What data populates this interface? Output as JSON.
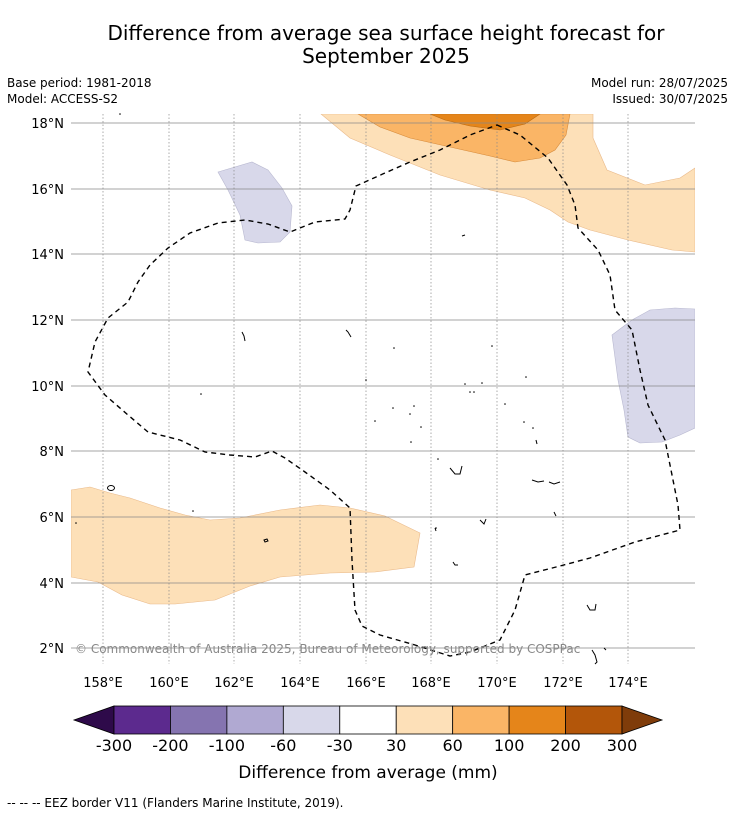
{
  "title_line1": "Difference from average sea surface height forecast for",
  "title_line2": "September 2025",
  "meta_left": [
    "Base period: 1981-2018",
    "Model: ACCESS-S2"
  ],
  "meta_right": [
    "Model run: 28/07/2025",
    "Issued: 30/07/2025"
  ],
  "lon_ticks": [
    "158°E",
    "160°E",
    "162°E",
    "164°E",
    "166°E",
    "168°E",
    "170°E",
    "172°E",
    "174°E"
  ],
  "lat_ticks": [
    "18°N",
    "16°N",
    "14°N",
    "12°N",
    "10°N",
    "8°N",
    "6°N",
    "4°N",
    "2°N"
  ],
  "copyright": "© Commonwealth of Australia 2025, Bureau of Meteorology, supported by COSPPac",
  "colorbar": {
    "colors": [
      "#2e0a4a",
      "#5c2a8e",
      "#8574b0",
      "#b0a9d2",
      "#d8d8ea",
      "#ffffff",
      "#fde0b8",
      "#fab566",
      "#e5851a",
      "#b3560a",
      "#7f3c0a"
    ],
    "labels": [
      "-300",
      "-200",
      "-100",
      "-60",
      "-30",
      "30",
      "60",
      "100",
      "200",
      "300"
    ],
    "title": "Difference from average (mm)"
  },
  "footer": "--  --  -- EEZ border V11 (Flanders Marine Institute, 2019)."
}
